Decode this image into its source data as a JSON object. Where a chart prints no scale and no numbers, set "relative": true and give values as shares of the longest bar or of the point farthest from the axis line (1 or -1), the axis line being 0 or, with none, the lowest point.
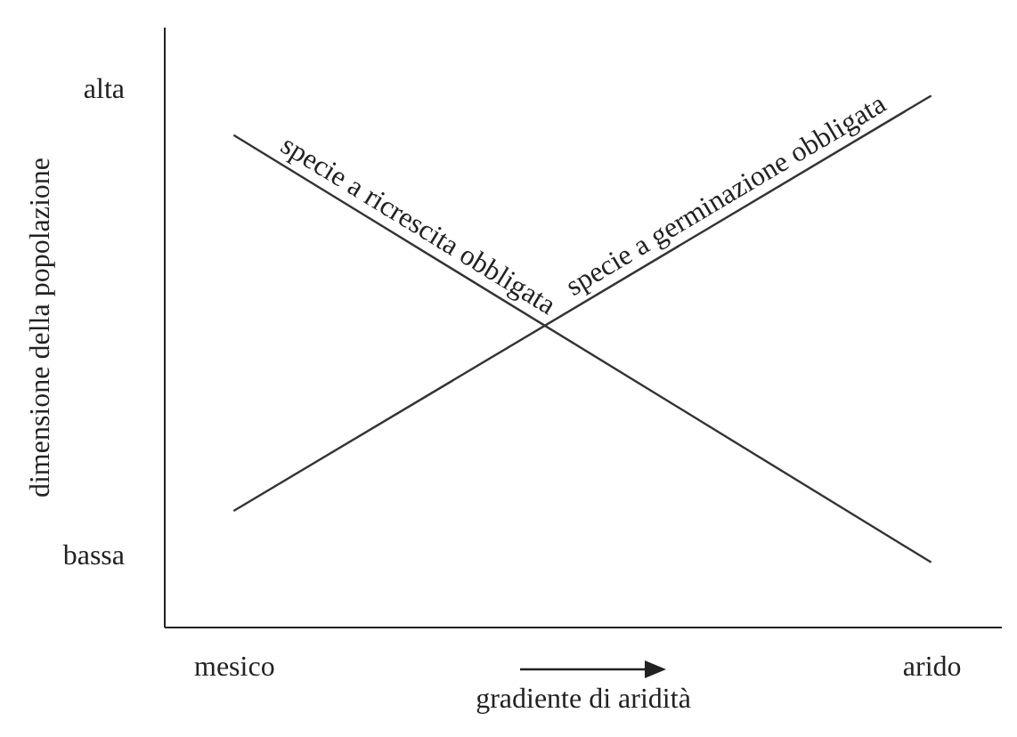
{
  "chart_data": {
    "type": "line",
    "relative": true,
    "xlabel": "gradiente di aridità",
    "ylabel": "dimensione della popolazione",
    "categories": [
      "mesico",
      "arido"
    ],
    "series": [
      {
        "name": "specie a ricrescita obbligata",
        "color": "#333333",
        "values": [
          0.926,
          0.121
        ]
      },
      {
        "name": "specie a germinazione obbligata",
        "color": "#333333",
        "values": [
          0.218,
          1
        ]
      }
    ],
    "annotations": [
      "alta",
      "bassa"
    ],
    "grid": false,
    "marker": "none",
    "line_style": "solid"
  }
}
